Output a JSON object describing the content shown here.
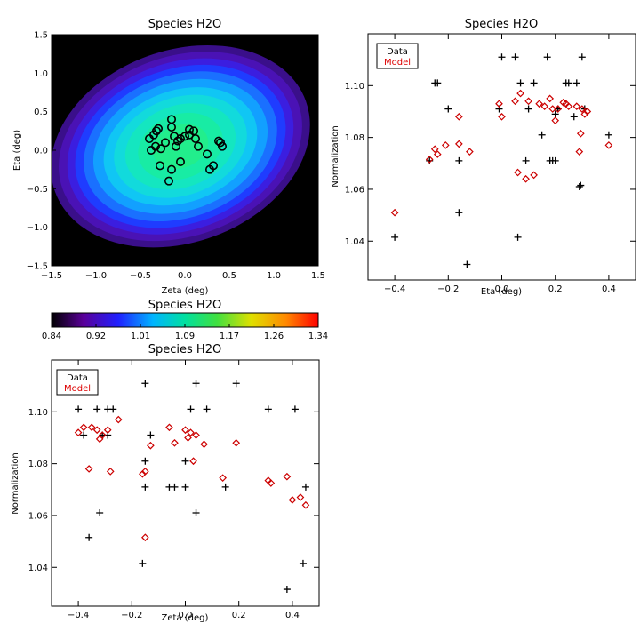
{
  "chart_data": [
    {
      "id": "map",
      "type": "heatmap",
      "title": "Species H2O",
      "xlabel": "Zeta (deg)",
      "ylabel": "Eta (deg)",
      "xlim": [
        -1.5,
        1.5
      ],
      "ylim": [
        -1.5,
        1.5
      ],
      "xticks": [
        "−1.5",
        "−1.0",
        "−0.5",
        "0.0",
        "0.5",
        "1.0",
        "1.5"
      ],
      "yticks": [
        "−1.5",
        "−1.0",
        "−0.5",
        "0.0",
        "0.5",
        "1.0",
        "1.5"
      ],
      "field_center": [
        -0.05,
        0.05
      ],
      "field_min": 0.84,
      "field_max": 1.09,
      "detector_positions": [
        [
          -0.4,
          0.15
        ],
        [
          -0.38,
          0.0
        ],
        [
          -0.35,
          0.2
        ],
        [
          -0.33,
          0.05
        ],
        [
          -0.32,
          0.25
        ],
        [
          -0.3,
          0.28
        ],
        [
          -0.28,
          -0.2
        ],
        [
          -0.27,
          0.02
        ],
        [
          -0.22,
          0.1
        ],
        [
          -0.15,
          0.4
        ],
        [
          -0.15,
          0.3
        ],
        [
          -0.15,
          -0.25
        ],
        [
          -0.12,
          0.18
        ],
        [
          -0.1,
          0.05
        ],
        [
          -0.05,
          0.15
        ],
        [
          -0.05,
          -0.15
        ],
        [
          0.0,
          0.18
        ],
        [
          0.05,
          0.27
        ],
        [
          0.1,
          0.25
        ],
        [
          0.12,
          0.15
        ],
        [
          0.15,
          0.05
        ],
        [
          0.25,
          -0.05
        ],
        [
          0.28,
          -0.25
        ],
        [
          0.32,
          -0.2
        ],
        [
          0.38,
          0.12
        ],
        [
          0.4,
          0.1
        ],
        [
          0.42,
          0.05
        ],
        [
          -0.18,
          -0.4
        ],
        [
          -0.08,
          0.12
        ],
        [
          0.05,
          0.2
        ]
      ]
    },
    {
      "id": "colorbar",
      "type": "colorbar",
      "title": "Species H2O",
      "ticks": [
        "0.84",
        "0.92",
        "1.01",
        "1.09",
        "1.17",
        "1.26",
        "1.34"
      ],
      "range": [
        0.84,
        1.34
      ]
    },
    {
      "id": "eta",
      "type": "scatter",
      "title": "Species H2O",
      "xlabel": "Eta (deg)",
      "ylabel": "Normalization",
      "xlim": [
        -0.5,
        0.5
      ],
      "ylim": [
        1.025,
        1.12
      ],
      "xticks": [
        -0.4,
        -0.2,
        0.0,
        0.2,
        0.4
      ],
      "yticks": [
        1.04,
        1.06,
        1.08,
        1.1
      ],
      "legend": {
        "data": "Data",
        "model": "Model",
        "placement": "top-left"
      },
      "series": [
        {
          "name": "Data",
          "marker": "plus",
          "color": "#000000",
          "points": [
            [
              -0.4,
              1.0415
            ],
            [
              -0.27,
              1.071
            ],
            [
              -0.25,
              1.101
            ],
            [
              -0.24,
              1.101
            ],
            [
              -0.2,
              1.091
            ],
            [
              -0.16,
              1.071
            ],
            [
              -0.16,
              1.051
            ],
            [
              -0.13,
              1.031
            ],
            [
              -0.01,
              1.091
            ],
            [
              0.0,
              1.111
            ],
            [
              0.05,
              1.111
            ],
            [
              0.06,
              1.0415
            ],
            [
              0.07,
              1.101
            ],
            [
              0.09,
              1.071
            ],
            [
              0.1,
              1.091
            ],
            [
              0.12,
              1.101
            ],
            [
              0.15,
              1.081
            ],
            [
              0.17,
              1.111
            ],
            [
              0.18,
              1.071
            ],
            [
              0.19,
              1.071
            ],
            [
              0.2,
              1.071
            ],
            [
              0.21,
              1.091
            ],
            [
              0.24,
              1.101
            ],
            [
              0.25,
              1.101
            ],
            [
              0.28,
              1.101
            ],
            [
              0.29,
              1.061
            ],
            [
              0.295,
              1.0615
            ],
            [
              0.3,
              1.111
            ],
            [
              0.31,
              1.091
            ],
            [
              0.4,
              1.081
            ],
            [
              0.2,
              1.089
            ],
            [
              0.27,
              1.088
            ]
          ]
        },
        {
          "name": "Model",
          "marker": "diamond",
          "color": "#cc0000",
          "points": [
            [
              -0.4,
              1.051
            ],
            [
              -0.27,
              1.0715
            ],
            [
              -0.25,
              1.0755
            ],
            [
              -0.24,
              1.0735
            ],
            [
              -0.21,
              1.077
            ],
            [
              -0.16,
              1.0775
            ],
            [
              -0.16,
              1.088
            ],
            [
              -0.12,
              1.0745
            ],
            [
              -0.01,
              1.093
            ],
            [
              0.0,
              1.088
            ],
            [
              0.05,
              1.094
            ],
            [
              0.06,
              1.0665
            ],
            [
              0.07,
              1.097
            ],
            [
              0.09,
              1.064
            ],
            [
              0.1,
              1.094
            ],
            [
              0.12,
              1.0655
            ],
            [
              0.14,
              1.093
            ],
            [
              0.16,
              1.092
            ],
            [
              0.18,
              1.095
            ],
            [
              0.19,
              1.091
            ],
            [
              0.2,
              1.0865
            ],
            [
              0.21,
              1.091
            ],
            [
              0.24,
              1.093
            ],
            [
              0.25,
              1.092
            ],
            [
              0.28,
              1.092
            ],
            [
              0.29,
              1.0745
            ],
            [
              0.295,
              1.0815
            ],
            [
              0.3,
              1.091
            ],
            [
              0.31,
              1.089
            ],
            [
              0.4,
              1.077
            ],
            [
              0.32,
              1.09
            ],
            [
              0.23,
              1.0935
            ]
          ]
        }
      ]
    },
    {
      "id": "zeta",
      "type": "scatter",
      "title": "Species H2O",
      "xlabel": "Zeta (deg)",
      "ylabel": "Normalization",
      "xlim": [
        -0.5,
        0.5
      ],
      "ylim": [
        1.025,
        1.12
      ],
      "xticks": [
        -0.4,
        -0.2,
        0.0,
        0.2,
        0.4
      ],
      "yticks": [
        1.04,
        1.06,
        1.08,
        1.1
      ],
      "legend": {
        "data": "Data",
        "model": "Model",
        "placement": "top-left"
      },
      "series": [
        {
          "name": "Data",
          "marker": "plus",
          "color": "#000000",
          "points": [
            [
              -0.4,
              1.101
            ],
            [
              -0.38,
              1.091
            ],
            [
              -0.36,
              1.0515
            ],
            [
              -0.35,
              1.111
            ],
            [
              -0.33,
              1.101
            ],
            [
              -0.32,
              1.061
            ],
            [
              -0.31,
              1.091
            ],
            [
              -0.29,
              1.101
            ],
            [
              -0.27,
              1.101
            ],
            [
              -0.16,
              1.0415
            ],
            [
              -0.15,
              1.081
            ],
            [
              -0.15,
              1.071
            ],
            [
              -0.15,
              1.111
            ],
            [
              -0.13,
              1.091
            ],
            [
              -0.06,
              1.071
            ],
            [
              -0.04,
              1.071
            ],
            [
              0.0,
              1.081
            ],
            [
              0.0,
              1.071
            ],
            [
              0.02,
              1.101
            ],
            [
              0.04,
              1.061
            ],
            [
              0.04,
              1.111
            ],
            [
              0.08,
              1.101
            ],
            [
              0.15,
              1.071
            ],
            [
              0.19,
              1.111
            ],
            [
              0.31,
              1.101
            ],
            [
              0.38,
              1.0315
            ],
            [
              0.41,
              1.101
            ],
            [
              0.44,
              1.0415
            ],
            [
              0.45,
              1.071
            ],
            [
              -0.29,
              1.091
            ]
          ]
        },
        {
          "name": "Model",
          "marker": "diamond",
          "color": "#cc0000",
          "points": [
            [
              -0.4,
              1.092
            ],
            [
              -0.38,
              1.094
            ],
            [
              -0.36,
              1.078
            ],
            [
              -0.35,
              1.094
            ],
            [
              -0.33,
              1.093
            ],
            [
              -0.32,
              1.0895
            ],
            [
              -0.31,
              1.091
            ],
            [
              -0.29,
              1.093
            ],
            [
              -0.28,
              1.077
            ],
            [
              -0.25,
              1.097
            ],
            [
              -0.16,
              1.076
            ],
            [
              -0.15,
              1.077
            ],
            [
              -0.15,
              1.0515
            ],
            [
              -0.13,
              1.087
            ],
            [
              -0.06,
              1.094
            ],
            [
              -0.04,
              1.088
            ],
            [
              0.0,
              1.093
            ],
            [
              0.01,
              1.09
            ],
            [
              0.02,
              1.092
            ],
            [
              0.03,
              1.081
            ],
            [
              0.04,
              1.091
            ],
            [
              0.07,
              1.0875
            ],
            [
              0.14,
              1.0745
            ],
            [
              0.19,
              1.088
            ],
            [
              0.31,
              1.0735
            ],
            [
              0.32,
              1.0725
            ],
            [
              0.38,
              1.075
            ],
            [
              0.4,
              1.066
            ],
            [
              0.43,
              1.067
            ],
            [
              0.45,
              1.064
            ]
          ]
        }
      ]
    }
  ]
}
